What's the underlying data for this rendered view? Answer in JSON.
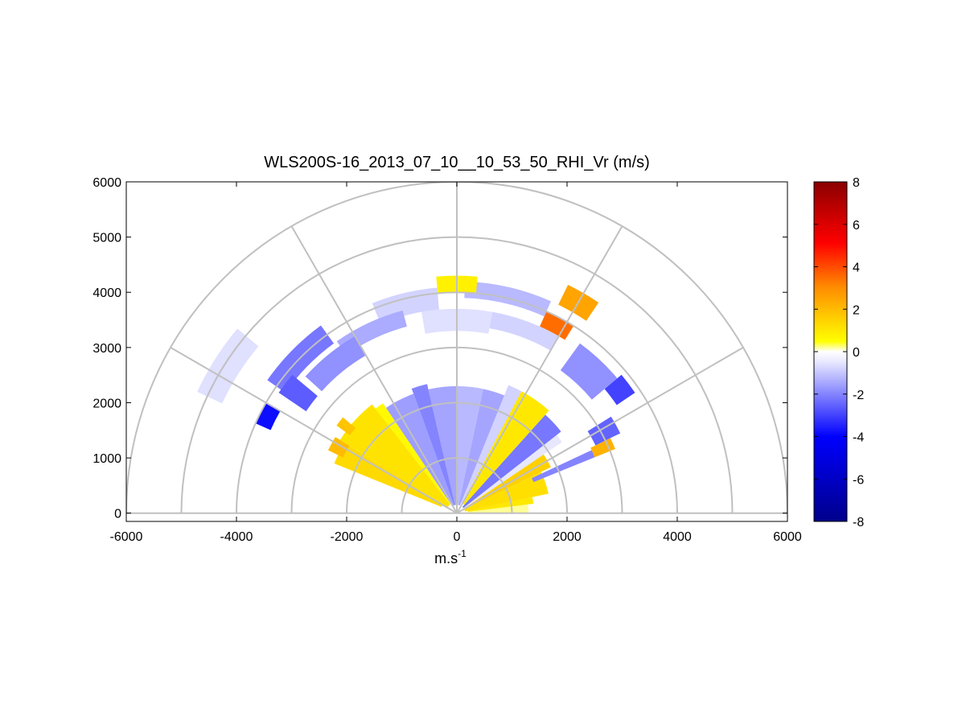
{
  "chart_data": {
    "type": "heatmap",
    "subtype": "polar-sector-RHI",
    "title": "WLS200S-16_2013_07_10__10_53_50_RHI_Vr (m/s)",
    "xlabel_base": "m.s",
    "xlabel_exp": "-1",
    "ylabel": "",
    "xlim": [
      -6000,
      6000
    ],
    "ylim": [
      -150,
      6000
    ],
    "x_ticks": [
      -6000,
      -4000,
      -2000,
      0,
      2000,
      4000,
      6000
    ],
    "y_ticks": [
      0,
      1000,
      2000,
      3000,
      4000,
      5000,
      6000
    ],
    "x_tick_labels": [
      "-6000",
      "-4000",
      "-2000",
      "0",
      "2000",
      "4000",
      "6000"
    ],
    "y_tick_labels": [
      "0",
      "1000",
      "2000",
      "3000",
      "4000",
      "5000",
      "6000"
    ],
    "range_rings": [
      1000,
      2000,
      3000,
      4000,
      5000,
      6000
    ],
    "radial_angles_deg": [
      0,
      30,
      60,
      90,
      120,
      150,
      180
    ],
    "colorbar": {
      "min": -8,
      "max": 8,
      "ticks": [
        8,
        6,
        4,
        2,
        0,
        -2,
        -4,
        -6,
        -8
      ],
      "tick_labels": [
        "8",
        "6",
        "4",
        "2",
        "0",
        "-2",
        "-4",
        "-6",
        "-8"
      ],
      "colors": [
        "#00008b",
        "#0000ff",
        "#e8e8ff",
        "#ffffff",
        "#ffff00",
        "#ff8c00",
        "#ff0000",
        "#8b0000"
      ],
      "positions": [
        0.0,
        0.25,
        0.47,
        0.5,
        0.53,
        0.69,
        0.82,
        1.0
      ]
    },
    "sectors": [
      {
        "az": [
          0,
          7
        ],
        "r": [
          200,
          1300
        ],
        "v": 0.2
      },
      {
        "az": [
          7,
          12
        ],
        "r": [
          200,
          1400
        ],
        "v": 1.0
      },
      {
        "az": [
          12,
          26
        ],
        "r": [
          150,
          1700
        ],
        "v": 1.2
      },
      {
        "az": [
          26,
          34
        ],
        "r": [
          150,
          1900
        ],
        "v": 1.5
      },
      {
        "az": [
          34,
          38
        ],
        "r": [
          150,
          2300
        ],
        "v": -0.5
      },
      {
        "az": [
          38,
          48
        ],
        "r": [
          150,
          2400
        ],
        "v": -2.2
      },
      {
        "az": [
          48,
          62
        ],
        "r": [
          200,
          2500
        ],
        "v": 1.0
      },
      {
        "az": [
          62,
          68
        ],
        "r": [
          200,
          2500
        ],
        "v": -0.8
      },
      {
        "az": [
          68,
          78
        ],
        "r": [
          150,
          2300
        ],
        "v": -1.5
      },
      {
        "az": [
          78,
          90
        ],
        "r": [
          150,
          2300
        ],
        "v": -1.2
      },
      {
        "az": [
          90,
          103
        ],
        "r": [
          150,
          2300
        ],
        "v": -1.5
      },
      {
        "az": [
          103,
          110
        ],
        "r": [
          150,
          2400
        ],
        "v": -2.0
      },
      {
        "az": [
          110,
          124
        ],
        "r": [
          150,
          2300
        ],
        "v": -1.6
      },
      {
        "az": [
          124,
          128
        ],
        "r": [
          200,
          2400
        ],
        "v": 0.6
      },
      {
        "az": [
          128,
          148
        ],
        "r": [
          200,
          2500
        ],
        "v": 1.1
      },
      {
        "az": [
          148,
          158
        ],
        "r": [
          300,
          2400
        ],
        "v": 1.3
      },
      {
        "az": [
          140,
          144
        ],
        "r": [
          2400,
          2700
        ],
        "v": 1.8
      },
      {
        "az": [
          148,
          154
        ],
        "r": [
          2300,
          2600
        ],
        "v": 2.0
      },
      {
        "az": [
          22,
          25
        ],
        "r": [
          1500,
          2700
        ],
        "v": -2.0
      },
      {
        "az": [
          22,
          26
        ],
        "r": [
          2700,
          3100
        ],
        "v": 2.2
      },
      {
        "az": [
          26,
          32
        ],
        "r": [
          2800,
          3300
        ],
        "v": -2.5
      },
      {
        "az": [
          34,
          40
        ],
        "r": [
          3500,
          3900
        ],
        "v": -3.0
      },
      {
        "az": [
          40,
          54
        ],
        "r": [
          3200,
          3800
        ],
        "v": -1.8
      },
      {
        "az": [
          58,
          66
        ],
        "r": [
          3700,
          4000
        ],
        "v": 3.5
      },
      {
        "az": [
          56,
          64
        ],
        "r": [
          4200,
          4600
        ],
        "v": 2.5
      },
      {
        "az": [
          60,
          80
        ],
        "r": [
          3400,
          3700
        ],
        "v": -0.8
      },
      {
        "az": [
          66,
          88
        ],
        "r": [
          3900,
          4200
        ],
        "v": -1.2
      },
      {
        "az": [
          80,
          100
        ],
        "r": [
          3300,
          3700
        ],
        "v": -0.6
      },
      {
        "az": [
          85,
          95
        ],
        "r": [
          4000,
          4300
        ],
        "v": 0.8
      },
      {
        "az": [
          95,
          112
        ],
        "r": [
          3700,
          4100
        ],
        "v": -0.8
      },
      {
        "az": [
          105,
          125
        ],
        "r": [
          3500,
          3800
        ],
        "v": -1.4
      },
      {
        "az": [
          120,
          138
        ],
        "r": [
          3300,
          3700
        ],
        "v": -1.8
      },
      {
        "az": [
          126,
          145
        ],
        "r": [
          3800,
          4200
        ],
        "v": -2.2
      },
      {
        "az": [
          140,
          155
        ],
        "r": [
          4700,
          5200
        ],
        "v": -0.6
      },
      {
        "az": [
          140,
          146
        ],
        "r": [
          3300,
          3900
        ],
        "v": -2.6
      },
      {
        "az": [
          150,
          156
        ],
        "r": [
          3700,
          4000
        ],
        "v": -3.8
      }
    ]
  }
}
